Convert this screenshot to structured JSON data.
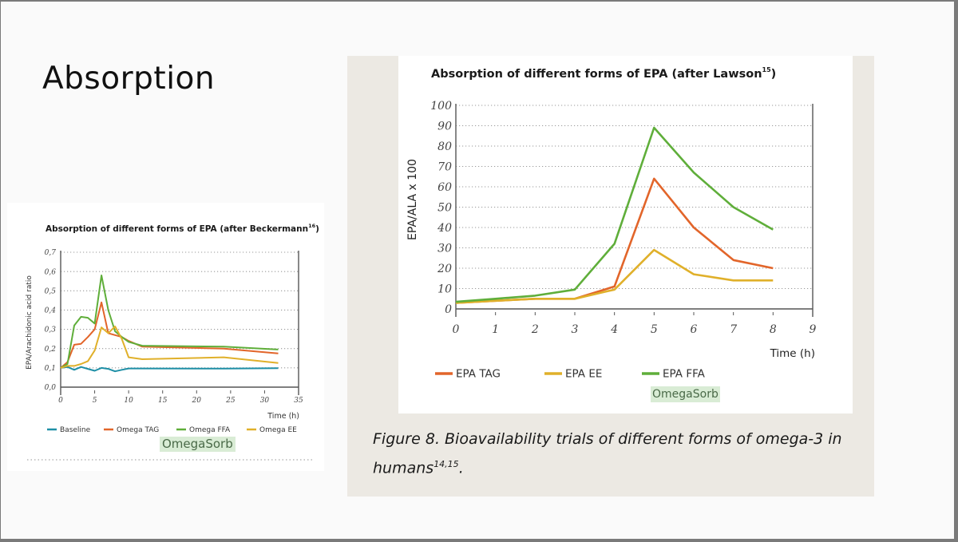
{
  "slide": {
    "title": "Absorption",
    "caption_main": "Figure 8. Bioavailability trials of different forms of omega-3 in humans",
    "caption_sup": "14,15",
    "caption_end": "."
  },
  "colors": {
    "baseline": "#1e8fa6",
    "tag": "#e2652a",
    "ffa": "#5fae3a",
    "ee": "#e0b02a",
    "badge_bg": "#d9ecd5"
  },
  "chart_data": [
    {
      "type": "line",
      "title": "Absorption of different forms of EPA (after Beckermann",
      "title_sup": "16",
      "title_end": ")",
      "xlabel": "Time (h)",
      "ylabel": "EPA/Arachidonic acid ratio",
      "xlim": [
        0,
        35
      ],
      "ylim": [
        0,
        0.7
      ],
      "x_ticks": [
        "0",
        "5",
        "10",
        "15",
        "20",
        "25",
        "30",
        "35"
      ],
      "y_ticks": [
        "0,0",
        "0,1",
        "0,2",
        "0,3",
        "0,4",
        "0,5",
        "0,6",
        "0,7"
      ],
      "grid": "horizontal-dotted",
      "legend_position": "bottom",
      "badge": "OmegaSorb",
      "series": [
        {
          "name": "Baseline",
          "color_key": "baseline",
          "x": [
            0,
            1,
            2,
            3,
            4,
            5,
            6,
            7,
            8,
            9,
            10,
            12,
            24,
            32
          ],
          "y": [
            0.1,
            0.105,
            0.09,
            0.105,
            0.095,
            0.085,
            0.1,
            0.095,
            0.082,
            0.09,
            0.097,
            0.097,
            0.096,
            0.098
          ]
        },
        {
          "name": "Omega TAG",
          "color_key": "tag",
          "x": [
            0,
            1,
            2,
            3,
            4,
            5,
            6,
            7,
            8,
            9,
            10,
            12,
            24,
            32
          ],
          "y": [
            0.1,
            0.13,
            0.22,
            0.225,
            0.26,
            0.3,
            0.44,
            0.28,
            0.27,
            0.26,
            0.24,
            0.21,
            0.2,
            0.175
          ]
        },
        {
          "name": "Omega FFA",
          "color_key": "ffa",
          "x": [
            0,
            1,
            2,
            3,
            4,
            5,
            6,
            7,
            8,
            9,
            10,
            12,
            24,
            32
          ],
          "y": [
            0.1,
            0.12,
            0.32,
            0.365,
            0.36,
            0.33,
            0.58,
            0.4,
            0.29,
            0.26,
            0.235,
            0.215,
            0.21,
            0.195
          ]
        },
        {
          "name": "Omega EE",
          "color_key": "ee",
          "x": [
            0,
            1,
            2,
            3,
            4,
            5,
            6,
            7,
            8,
            9,
            10,
            12,
            24,
            32
          ],
          "y": [
            0.1,
            0.11,
            0.11,
            0.12,
            0.135,
            0.19,
            0.31,
            0.28,
            0.315,
            0.25,
            0.155,
            0.145,
            0.155,
            0.125
          ]
        }
      ]
    },
    {
      "type": "line",
      "title": "Absorption of different forms of EPA (after Lawson",
      "title_sup": "15",
      "title_end": ")",
      "xlabel": "Time (h)",
      "ylabel": "EPA/ALA x 100",
      "xlim": [
        0,
        9
      ],
      "ylim": [
        0,
        100
      ],
      "x_ticks": [
        "0",
        "1",
        "2",
        "3",
        "4",
        "5",
        "6",
        "7",
        "8",
        "9"
      ],
      "y_ticks": [
        "0",
        "10",
        "20",
        "30",
        "40",
        "50",
        "60",
        "70",
        "80",
        "90",
        "100"
      ],
      "grid": "horizontal-dotted",
      "legend_position": "bottom",
      "badge": "OmegaSorb",
      "series": [
        {
          "name": "EPA TAG",
          "color_key": "tag",
          "x": [
            0,
            1,
            2,
            3,
            4,
            5,
            6,
            7,
            8
          ],
          "y": [
            3,
            4,
            5,
            5,
            11,
            64,
            40,
            24,
            20
          ]
        },
        {
          "name": "EPA EE",
          "color_key": "ee",
          "x": [
            0,
            1,
            2,
            3,
            4,
            5,
            6,
            7,
            8
          ],
          "y": [
            3,
            4,
            5,
            5,
            9.5,
            29,
            17,
            14,
            14
          ]
        },
        {
          "name": "EPA FFA",
          "color_key": "ffa",
          "x": [
            0,
            1,
            2,
            3,
            4,
            5,
            6,
            7,
            8
          ],
          "y": [
            3.5,
            5,
            6.5,
            9.5,
            32,
            89,
            67,
            50,
            39
          ]
        }
      ]
    }
  ]
}
